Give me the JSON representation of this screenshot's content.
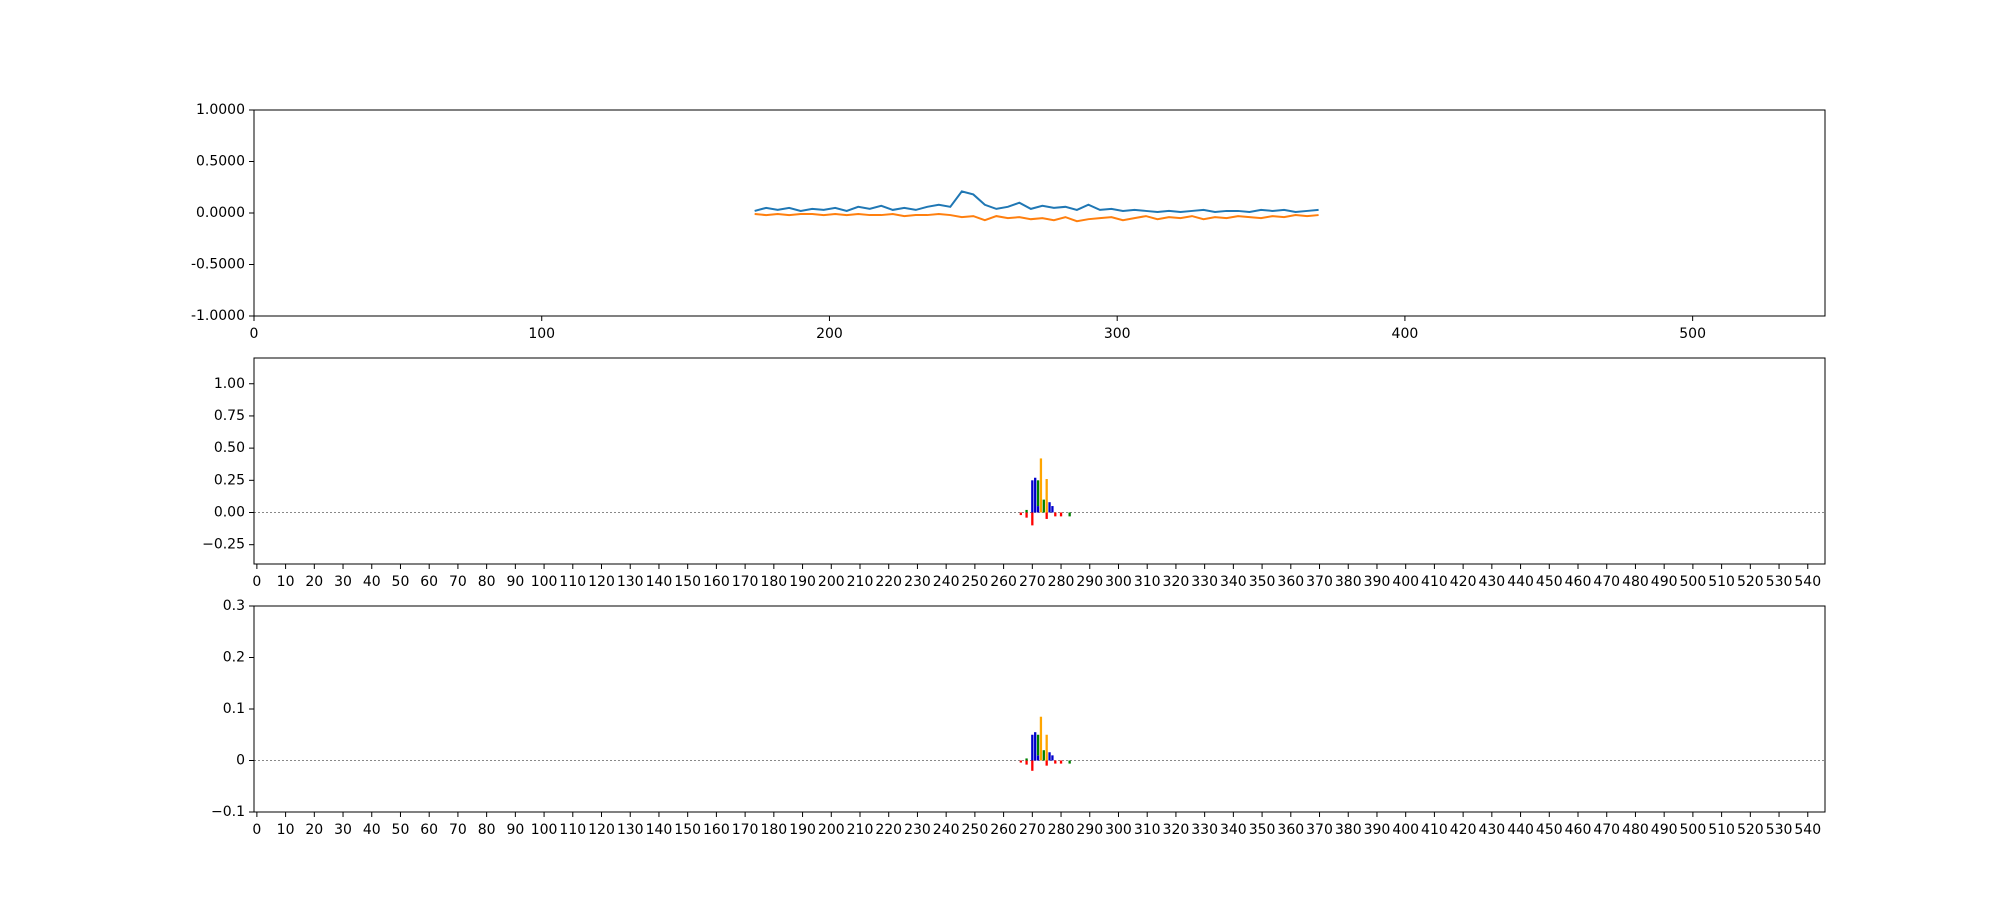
{
  "chart_data": [
    {
      "type": "line",
      "x": [
        174,
        178,
        182,
        186,
        190,
        194,
        198,
        202,
        206,
        210,
        214,
        218,
        222,
        226,
        230,
        234,
        238,
        242,
        246,
        250,
        254,
        258,
        262,
        266,
        270,
        274,
        278,
        282,
        286,
        290,
        294,
        298,
        302,
        306,
        310,
        314,
        318,
        322,
        326,
        330,
        334,
        338,
        342,
        346,
        350,
        354,
        358,
        362,
        366,
        370
      ],
      "series": [
        {
          "color": "#1f77b4",
          "values": [
            0.02,
            0.05,
            0.03,
            0.05,
            0.02,
            0.04,
            0.03,
            0.05,
            0.02,
            0.06,
            0.04,
            0.07,
            0.03,
            0.05,
            0.03,
            0.06,
            0.08,
            0.06,
            0.21,
            0.18,
            0.08,
            0.04,
            0.06,
            0.1,
            0.04,
            0.07,
            0.05,
            0.06,
            0.03,
            0.08,
            0.03,
            0.04,
            0.02,
            0.03,
            0.02,
            0.01,
            0.02,
            0.01,
            0.02,
            0.03,
            0.01,
            0.02,
            0.02,
            0.01,
            0.03,
            0.02,
            0.03,
            0.01,
            0.02,
            0.03
          ]
        },
        {
          "color": "#ff7f0e",
          "values": [
            -0.01,
            -0.02,
            -0.01,
            -0.02,
            -0.01,
            -0.01,
            -0.02,
            -0.01,
            -0.02,
            -0.01,
            -0.02,
            -0.02,
            -0.01,
            -0.03,
            -0.02,
            -0.02,
            -0.01,
            -0.02,
            -0.04,
            -0.03,
            -0.07,
            -0.03,
            -0.05,
            -0.04,
            -0.06,
            -0.05,
            -0.07,
            -0.04,
            -0.08,
            -0.06,
            -0.05,
            -0.04,
            -0.07,
            -0.05,
            -0.03,
            -0.06,
            -0.04,
            -0.05,
            -0.03,
            -0.06,
            -0.04,
            -0.05,
            -0.03,
            -0.04,
            -0.05,
            -0.03,
            -0.04,
            -0.02,
            -0.03,
            -0.02
          ]
        }
      ],
      "xlim": [
        0,
        546
      ],
      "xticks": [
        0,
        100,
        200,
        300,
        400,
        500
      ],
      "ylim": [
        -1,
        1
      ],
      "yticks": [
        {
          "value": -1,
          "label": "-1.0000"
        },
        {
          "value": -0.5,
          "label": "-0.5000"
        },
        {
          "value": 0,
          "label": "0.0000"
        },
        {
          "value": 0.5,
          "label": "0.5000"
        },
        {
          "value": 1,
          "label": "1.0000"
        }
      ]
    },
    {
      "type": "logo",
      "x": [
        266,
        268,
        270,
        271,
        272,
        273,
        274,
        275,
        276,
        277,
        278,
        280,
        283
      ],
      "series": [
        {
          "color": "#0000cc",
          "values": [
            0,
            0,
            0.25,
            0.27,
            0.05,
            0,
            0,
            0,
            0.08,
            0.05,
            0,
            0,
            0
          ]
        },
        {
          "color": "#ffa500",
          "values": [
            0,
            0,
            0,
            0,
            0,
            0.42,
            0,
            0.26,
            0,
            0,
            0,
            0,
            0
          ]
        },
        {
          "color": "#008000",
          "values": [
            0,
            0.02,
            0,
            0,
            0.2,
            0,
            0.1,
            0,
            0,
            0,
            0,
            0,
            -0.03
          ]
        },
        {
          "color": "#ff0000",
          "values": [
            -0.02,
            -0.04,
            -0.1,
            0,
            0,
            0,
            0,
            -0.05,
            0,
            0,
            -0.03,
            -0.03,
            0
          ]
        }
      ],
      "xlim": [
        -1,
        546
      ],
      "xticks": [
        0,
        10,
        20,
        30,
        40,
        50,
        60,
        70,
        80,
        90,
        100,
        110,
        120,
        130,
        140,
        150,
        160,
        170,
        180,
        190,
        200,
        210,
        220,
        230,
        240,
        250,
        260,
        270,
        280,
        290,
        300,
        310,
        320,
        330,
        340,
        350,
        360,
        370,
        380,
        390,
        400,
        410,
        420,
        430,
        440,
        450,
        460,
        470,
        480,
        490,
        500,
        510,
        520,
        530,
        540
      ],
      "ylim": [
        -0.4,
        1.2
      ],
      "yticks": [
        {
          "value": -0.25,
          "label": "−0.25"
        },
        {
          "value": 0,
          "label": "0.00"
        },
        {
          "value": 0.25,
          "label": "0.25"
        },
        {
          "value": 0.5,
          "label": "0.50"
        },
        {
          "value": 0.75,
          "label": "0.75"
        },
        {
          "value": 1,
          "label": "1.00"
        }
      ]
    },
    {
      "type": "logo",
      "x": [
        266,
        268,
        270,
        271,
        272,
        273,
        274,
        275,
        276,
        277,
        278,
        280,
        283
      ],
      "series": [
        {
          "color": "#0000cc",
          "values": [
            0,
            0,
            0.05,
            0.055,
            0.01,
            0,
            0,
            0,
            0.016,
            0.01,
            0,
            0,
            0
          ]
        },
        {
          "color": "#ffa500",
          "values": [
            0,
            0,
            0,
            0,
            0,
            0.085,
            0,
            0.05,
            0,
            0,
            0,
            0,
            0
          ]
        },
        {
          "color": "#008000",
          "values": [
            0,
            0.004,
            0,
            0,
            0.04,
            0,
            0.02,
            0,
            0,
            0,
            0,
            0,
            -0.006
          ]
        },
        {
          "color": "#ff0000",
          "values": [
            -0.004,
            -0.008,
            -0.02,
            0,
            0,
            0,
            0,
            -0.01,
            0,
            0,
            -0.006,
            -0.006,
            0
          ]
        }
      ],
      "xlim": [
        -1,
        546
      ],
      "xticks": [
        0,
        10,
        20,
        30,
        40,
        50,
        60,
        70,
        80,
        90,
        100,
        110,
        120,
        130,
        140,
        150,
        160,
        170,
        180,
        190,
        200,
        210,
        220,
        230,
        240,
        250,
        260,
        270,
        280,
        290,
        300,
        310,
        320,
        330,
        340,
        350,
        360,
        370,
        380,
        390,
        400,
        410,
        420,
        430,
        440,
        450,
        460,
        470,
        480,
        490,
        500,
        510,
        520,
        530,
        540
      ],
      "ylim": [
        -0.1,
        0.3
      ],
      "yticks": [
        {
          "value": -0.1,
          "label": "−0.1"
        },
        0.0,
        0.1,
        0.2,
        0.3
      ]
    }
  ]
}
